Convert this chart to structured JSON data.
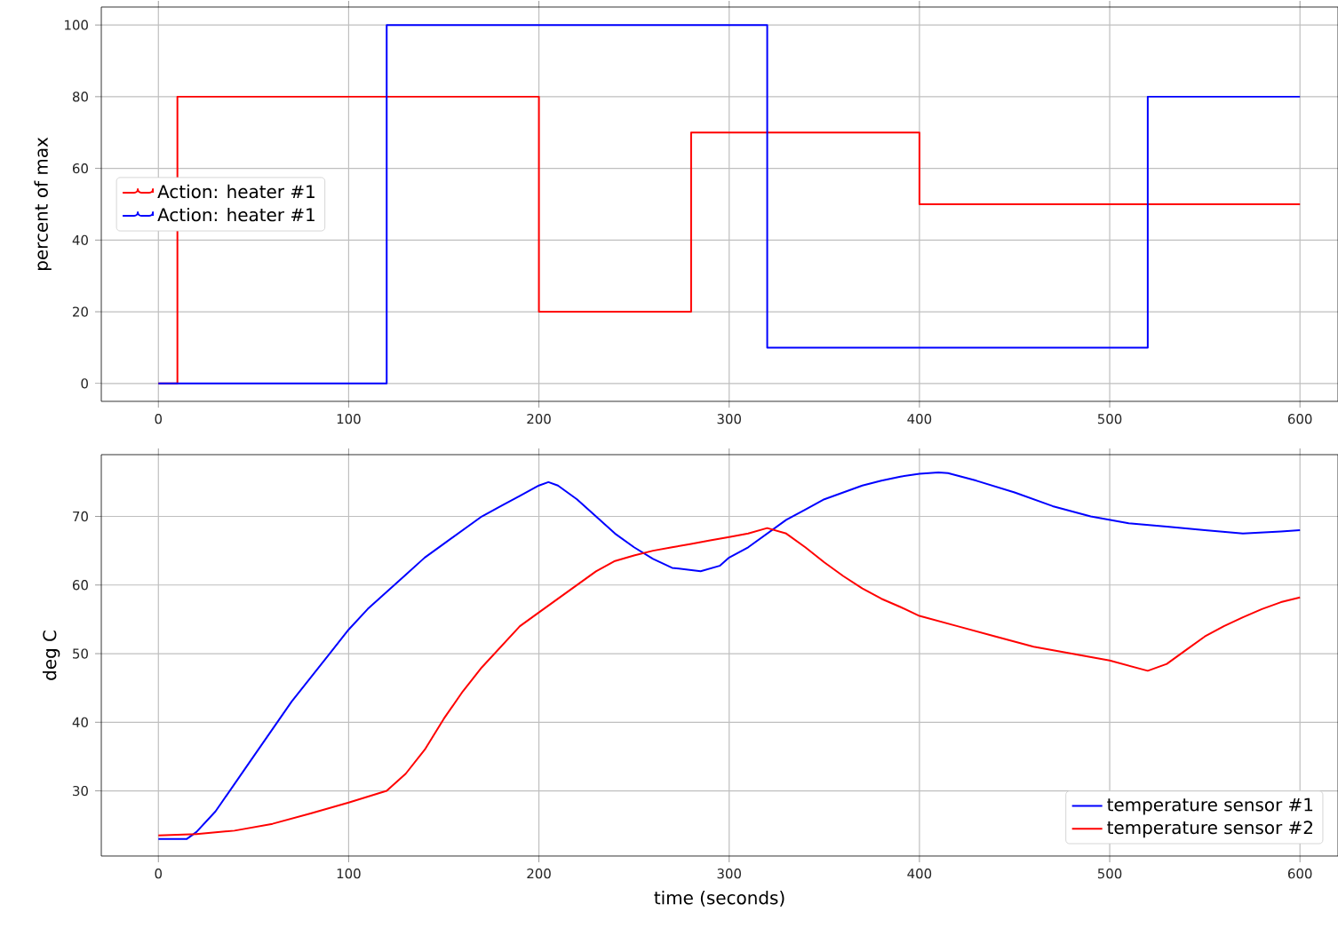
{
  "chart_data": [
    {
      "type": "step",
      "ylabel": "percent of max",
      "xlim": [
        -30,
        620
      ],
      "ylim": [
        -5,
        105
      ],
      "xticks": [
        0,
        100,
        200,
        300,
        400,
        500,
        600
      ],
      "yticks": [
        0,
        20,
        40,
        60,
        80,
        100
      ],
      "grid": true,
      "legend": "left",
      "series": [
        {
          "name": "Action: heater #1",
          "color": "#ff0000",
          "x": [
            0,
            10,
            200,
            280,
            400,
            600
          ],
          "values": [
            0,
            80,
            20,
            70,
            50,
            50
          ]
        },
        {
          "name": "Action: heater #1",
          "color": "#0000ff",
          "x": [
            0,
            120,
            320,
            520,
            600
          ],
          "values": [
            0,
            100,
            10,
            80,
            80
          ]
        }
      ]
    },
    {
      "type": "line",
      "xlabel": "time (seconds)",
      "ylabel": "deg C",
      "xlim": [
        -30,
        620
      ],
      "ylim": [
        20.5,
        79
      ],
      "xticks": [
        0,
        100,
        200,
        300,
        400,
        500,
        600
      ],
      "yticks": [
        30,
        40,
        50,
        60,
        70
      ],
      "grid": true,
      "legend": "bottom right",
      "series": [
        {
          "name": "temperature sensor #1",
          "color": "#0000ff",
          "x": [
            0,
            15,
            20,
            30,
            40,
            50,
            60,
            70,
            80,
            90,
            100,
            110,
            120,
            130,
            140,
            150,
            160,
            170,
            180,
            190,
            200,
            205,
            210,
            220,
            230,
            240,
            250,
            260,
            270,
            285,
            295,
            300,
            310,
            320,
            330,
            340,
            350,
            360,
            370,
            380,
            390,
            400,
            410,
            415,
            430,
            450,
            470,
            490,
            510,
            530,
            550,
            570,
            590,
            600
          ],
          "values": [
            23,
            23,
            24,
            27,
            31,
            35,
            39,
            43,
            46.5,
            50,
            53.5,
            56.5,
            59,
            61.5,
            64,
            66,
            68,
            70,
            71.5,
            73,
            74.5,
            75,
            74.5,
            72.5,
            70,
            67.5,
            65.5,
            63.8,
            62.5,
            62,
            62.8,
            64,
            65.5,
            67.5,
            69.5,
            71,
            72.5,
            73.5,
            74.5,
            75.2,
            75.8,
            76.2,
            76.4,
            76.3,
            75.2,
            73.5,
            71.5,
            70,
            69,
            68.5,
            68,
            67.5,
            67.8,
            68
          ]
        },
        {
          "name": "temperature sensor #2",
          "color": "#ff0000",
          "x": [
            0,
            20,
            40,
            60,
            80,
            100,
            120,
            130,
            140,
            150,
            160,
            170,
            180,
            190,
            200,
            210,
            220,
            230,
            240,
            250,
            260,
            270,
            280,
            290,
            300,
            310,
            320,
            330,
            340,
            350,
            360,
            370,
            380,
            390,
            400,
            420,
            440,
            460,
            480,
            500,
            520,
            530,
            540,
            550,
            560,
            570,
            580,
            590,
            600
          ],
          "values": [
            23.5,
            23.7,
            24.2,
            25.2,
            26.7,
            28.3,
            30,
            32.5,
            36,
            40.5,
            44.5,
            48,
            51,
            54,
            56,
            58,
            60,
            62,
            63.5,
            64.3,
            65,
            65.5,
            66,
            66.5,
            67,
            67.5,
            68.3,
            67.5,
            65.5,
            63.3,
            61.3,
            59.5,
            58,
            56.8,
            55.5,
            54,
            52.5,
            51,
            50,
            49,
            47.5,
            48.5,
            50.5,
            52.5,
            54,
            55.3,
            56.5,
            57.5,
            58.2
          ]
        }
      ]
    }
  ]
}
